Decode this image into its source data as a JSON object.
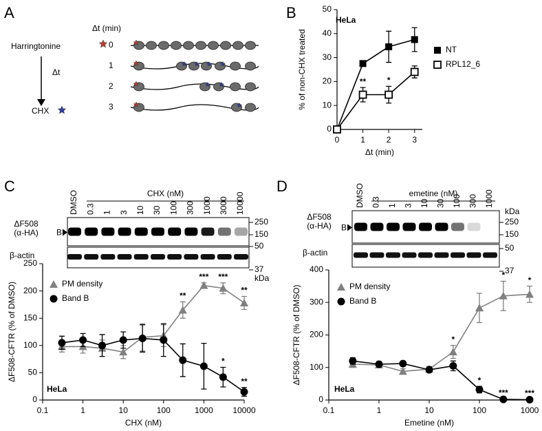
{
  "panels": [
    "A",
    "B",
    "C",
    "D"
  ],
  "diagram": {
    "drug1": "Harringtonine",
    "interval": "Δt",
    "drug2": "CHX",
    "time_header": "Δt (min)",
    "rows": [
      "0",
      "1",
      "2",
      "3"
    ]
  },
  "blots": [
    {
      "treatment": "CHX (nM)",
      "lanes": [
        "DMSO",
        "0.3",
        "1",
        "3",
        "10",
        "30",
        "100",
        "300",
        "1000",
        "3000",
        "10000"
      ],
      "target": [
        "ΔF508",
        "(α-HA)"
      ],
      "band": "B",
      "loading": "β-actin",
      "markers": [
        "250",
        "150",
        "50",
        "37"
      ],
      "unit": "kDa"
    },
    {
      "treatment": "emetine (nM)",
      "lanes": [
        "DMSO",
        "0.3",
        "1",
        "3",
        "10",
        "30",
        "100",
        "300",
        "1000"
      ],
      "target": [
        "ΔF508",
        "(α-HA)"
      ],
      "band": "B",
      "loading": "β-actin",
      "markers": [
        "250",
        "150",
        "50",
        "37"
      ],
      "unit": "kDa"
    }
  ],
  "chart_data": [
    {
      "type": "line",
      "annotation": "HeLa",
      "x_label": "Δt (min)",
      "y_label": "% of non-CHX treated",
      "x": [
        0,
        1,
        2,
        3
      ],
      "xlim": [
        0,
        3.3
      ],
      "xticks": [
        0,
        1,
        2,
        3
      ],
      "ylim": [
        0,
        50
      ],
      "yticks": [
        0,
        10,
        20,
        30,
        40,
        50
      ],
      "legend": "right",
      "series": [
        {
          "name": "NT",
          "color": "#000000",
          "marker": "square",
          "values": [
            0,
            27.5,
            34.5,
            37.5
          ],
          "errors": [
            0,
            1,
            6.5,
            5
          ],
          "labels": [
            null,
            null,
            null,
            null
          ]
        },
        {
          "name": "RPL12_6",
          "color": "#000000",
          "marker": "square-open",
          "values": [
            0,
            14.5,
            14.5,
            24
          ],
          "errors": [
            0,
            3,
            3.5,
            2.5
          ],
          "labels": [
            null,
            "**",
            "*",
            null
          ]
        }
      ]
    },
    {
      "type": "line",
      "annotation": "HeLa",
      "x_label": "CHX (nM)",
      "y_label": "ΔF508-CFTR (% of DMSO)",
      "log_x": true,
      "x": [
        0.3,
        1,
        3,
        10,
        30,
        100,
        300,
        1000,
        3000,
        10000
      ],
      "xlim": [
        0.1,
        10000
      ],
      "xticks": [
        0.1,
        1,
        10,
        100,
        1000,
        10000
      ],
      "ylim": [
        0,
        250
      ],
      "yticks": [
        0,
        50,
        100,
        150,
        200,
        250
      ],
      "legend": "upper left",
      "series": [
        {
          "name": "PM density",
          "color": "#808080",
          "marker": "triangle",
          "values": [
            98,
            98,
            95,
            88,
            115,
            118,
            165,
            210,
            205,
            178
          ],
          "errors": [
            10,
            12,
            15,
            12,
            25,
            20,
            15,
            5,
            10,
            12
          ],
          "labels": [
            null,
            null,
            null,
            null,
            null,
            null,
            "**",
            "***",
            "***",
            "**"
          ]
        },
        {
          "name": "Band B",
          "color": "#000000",
          "marker": "circle",
          "values": [
            105,
            110,
            100,
            110,
            113,
            110,
            73,
            62,
            42,
            15
          ],
          "errors": [
            12,
            12,
            20,
            15,
            25,
            30,
            30,
            42,
            18,
            8
          ],
          "labels": [
            null,
            null,
            null,
            null,
            null,
            null,
            null,
            null,
            "*",
            "**"
          ]
        }
      ]
    },
    {
      "type": "line",
      "annotation": "HeLa",
      "x_label": "Emetine (nM)",
      "y_label": "ΔF508-CFTR (% of DMSO)",
      "log_x": true,
      "x": [
        0.3,
        1,
        3,
        10,
        30,
        100,
        300,
        1000
      ],
      "xlim": [
        0.1,
        1000
      ],
      "xticks": [
        0.1,
        1,
        10,
        100,
        1000
      ],
      "ylim": [
        0,
        400
      ],
      "yticks": [
        0,
        100,
        200,
        300,
        400
      ],
      "legend": "upper left",
      "series": [
        {
          "name": "PM density",
          "color": "#808080",
          "marker": "triangle",
          "values": [
            110,
            108,
            88,
            95,
            148,
            283,
            320,
            325
          ],
          "errors": [
            10,
            8,
            8,
            8,
            20,
            45,
            45,
            25
          ],
          "labels": [
            null,
            null,
            null,
            null,
            "*",
            null,
            "*",
            "*"
          ]
        },
        {
          "name": "Band B",
          "color": "#000000",
          "marker": "circle",
          "values": [
            120,
            110,
            112,
            93,
            105,
            32,
            2,
            1
          ],
          "errors": [
            10,
            8,
            5,
            8,
            15,
            10,
            2,
            1
          ],
          "labels": [
            null,
            null,
            null,
            null,
            null,
            "*",
            "***",
            "***"
          ]
        }
      ]
    }
  ]
}
